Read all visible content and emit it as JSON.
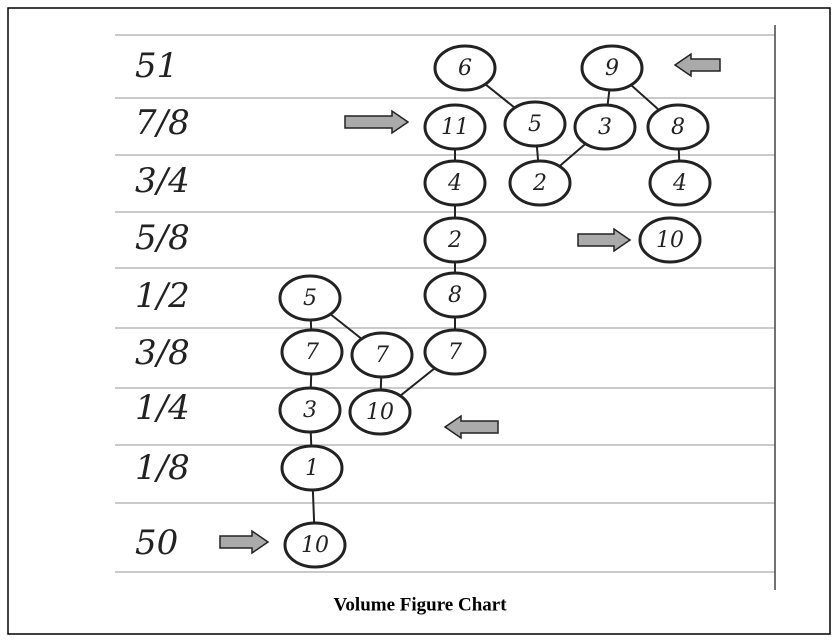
{
  "rows": [
    "51",
    "7/8",
    "3/4",
    "5/8",
    "1/2",
    "3/8",
    "1/4",
    "1/8",
    "50"
  ],
  "nodes": [
    "6",
    "9",
    "11",
    "5",
    "3",
    "8",
    "4",
    "2",
    "4",
    "2",
    "10",
    "5",
    "8",
    "7",
    "7",
    "7",
    "3",
    "10",
    "1",
    "10"
  ],
  "caption": "Volume Figure Chart"
}
